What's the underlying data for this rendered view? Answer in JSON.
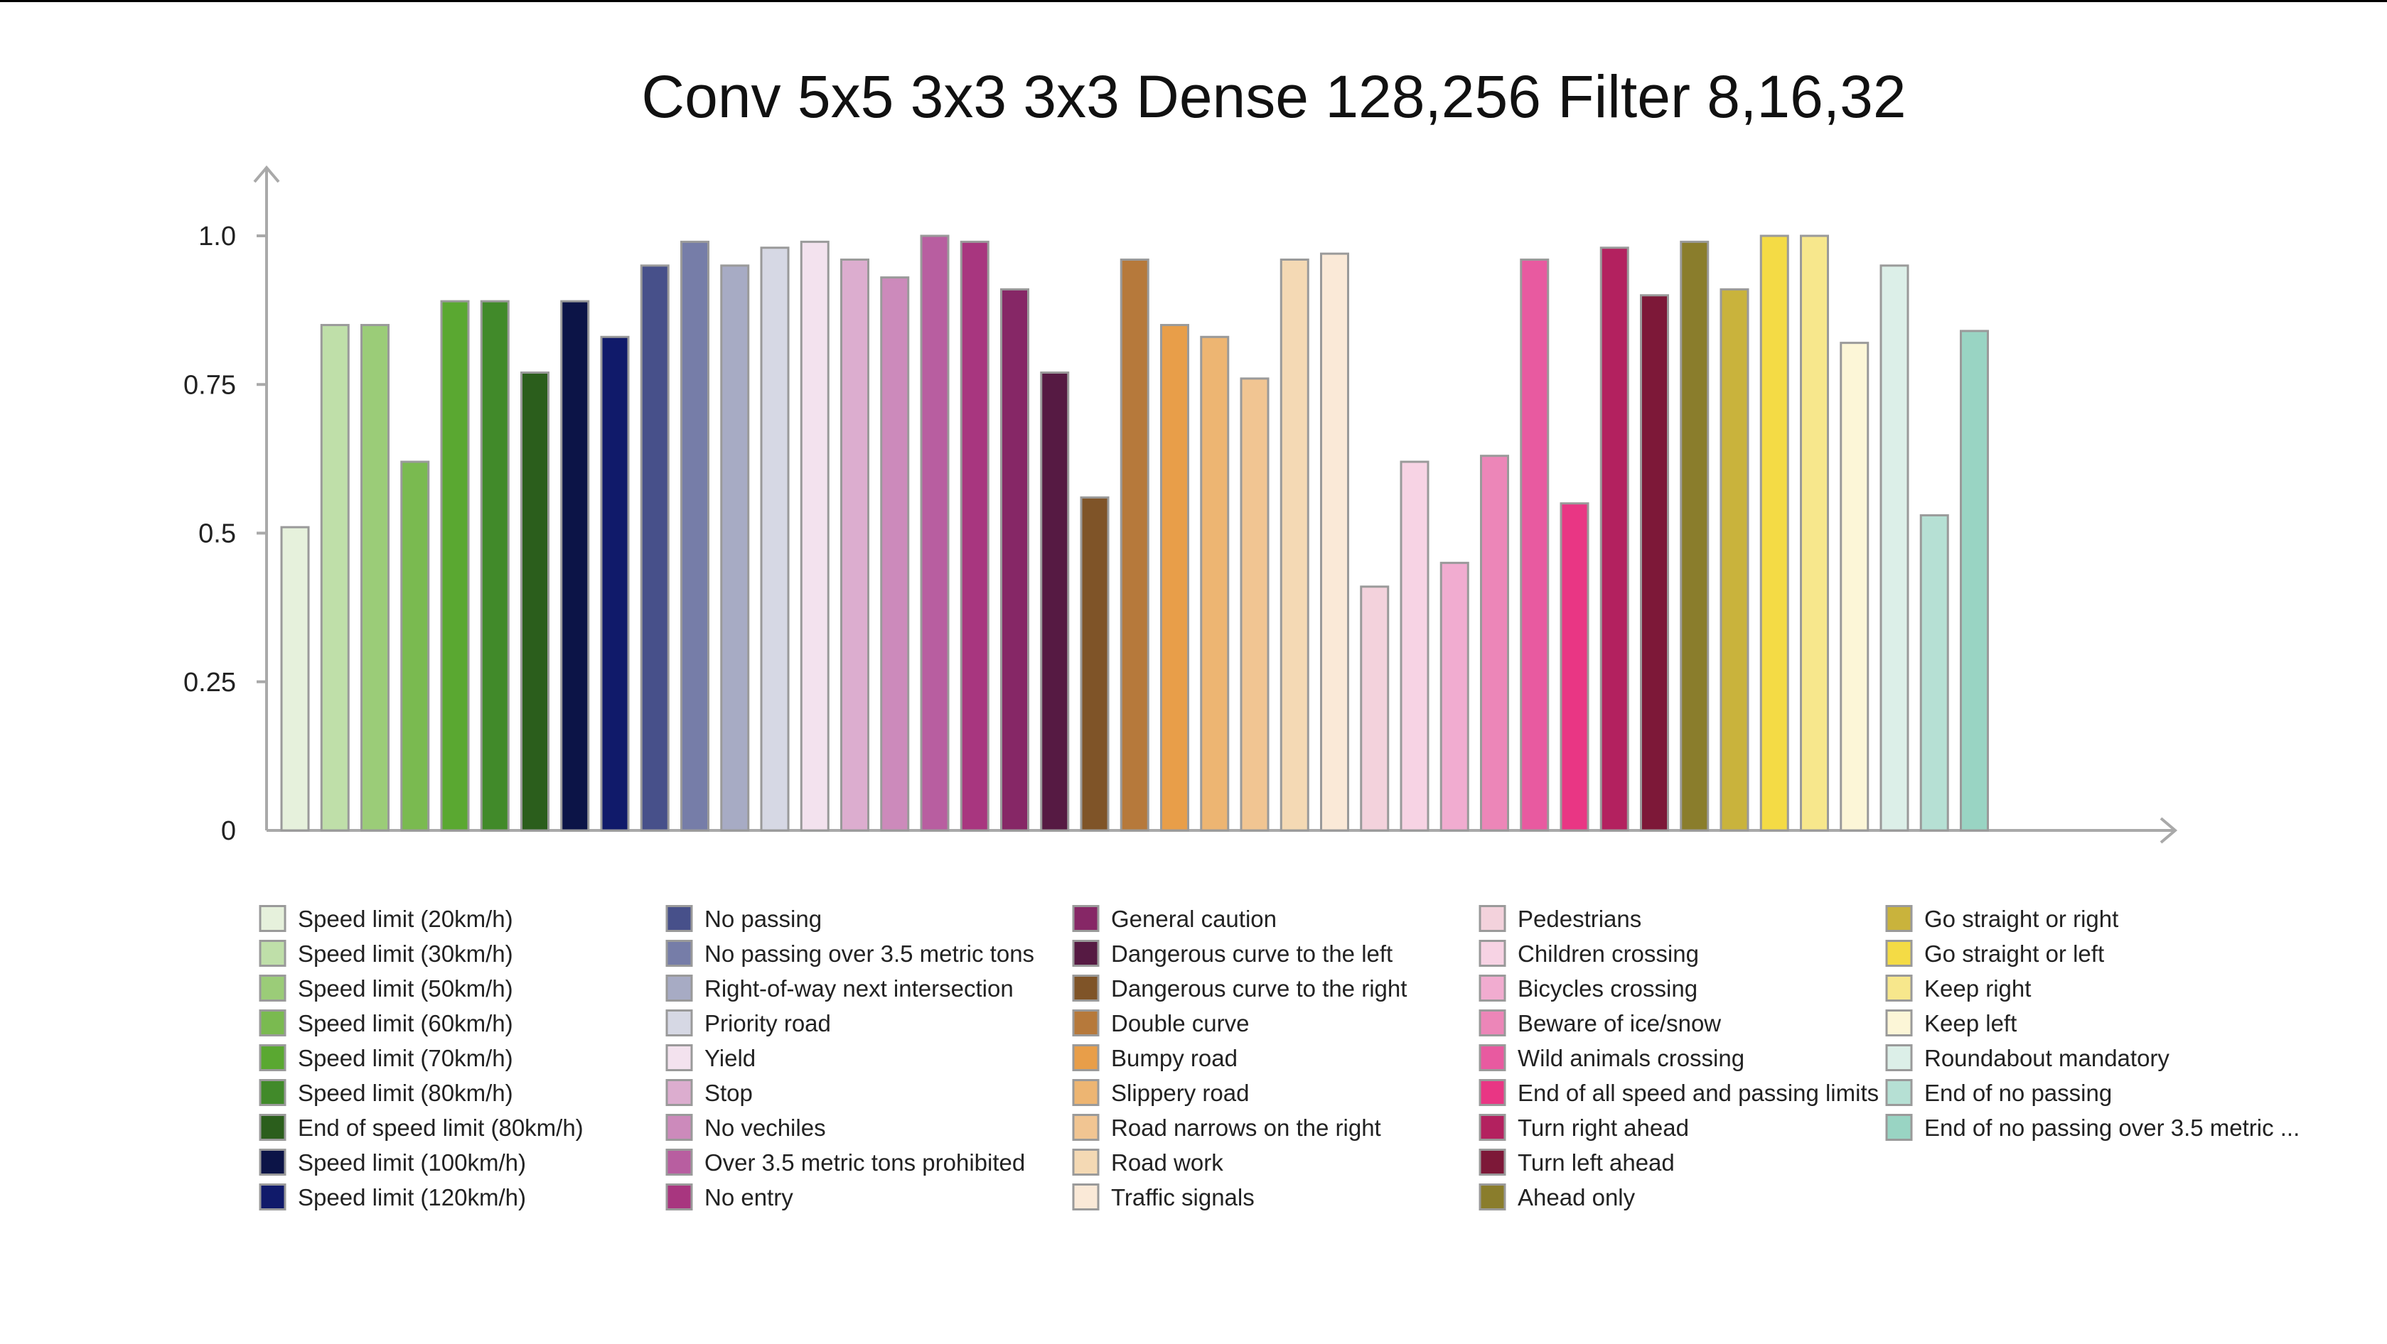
{
  "chart_data": {
    "type": "bar",
    "title": "Conv 5x5 3x3 3x3 Dense 128,256 Filter 8,16,32",
    "xlabel": "",
    "ylabel": "",
    "ylim": [
      0,
      1.1
    ],
    "yticks": [
      {
        "value": 0,
        "label": "0"
      },
      {
        "value": 0.25,
        "label": "0.25"
      },
      {
        "value": 0.5,
        "label": "0.5"
      },
      {
        "value": 0.75,
        "label": "0.75"
      },
      {
        "value": 1.0,
        "label": "1.0"
      }
    ],
    "grid": false,
    "legend_position": "bottom",
    "categories": [
      {
        "label": "Speed limit (20km/h)",
        "value": 0.51,
        "color": "#e6f1dc"
      },
      {
        "label": "Speed limit (30km/h)",
        "value": 0.85,
        "color": "#bfdfa9"
      },
      {
        "label": "Speed limit (50km/h)",
        "value": 0.85,
        "color": "#9bcc78"
      },
      {
        "label": "Speed limit (60km/h)",
        "value": 0.62,
        "color": "#7aba50"
      },
      {
        "label": "Speed limit (70km/h)",
        "value": 0.89,
        "color": "#5aa831"
      },
      {
        "label": "Speed limit (80km/h)",
        "value": 0.89,
        "color": "#418a2a"
      },
      {
        "label": "End of speed limit (80km/h)",
        "value": 0.77,
        "color": "#2b5e1c"
      },
      {
        "label": "Speed limit (100km/h)",
        "value": 0.89,
        "color": "#0c1447"
      },
      {
        "label": "Speed limit (120km/h)",
        "value": 0.83,
        "color": "#101a6a"
      },
      {
        "label": "No passing",
        "value": 0.95,
        "color": "#47508a"
      },
      {
        "label": "No passing over 3.5 metric tons",
        "value": 0.99,
        "color": "#767da8"
      },
      {
        "label": "Right-of-way next intersection",
        "value": 0.95,
        "color": "#a7abc4"
      },
      {
        "label": "Priority road",
        "value": 0.98,
        "color": "#d6d8e4"
      },
      {
        "label": "Yield",
        "value": 0.99,
        "color": "#f3e2ee"
      },
      {
        "label": "Stop",
        "value": 0.96,
        "color": "#dcadcf"
      },
      {
        "label": "No vechiles",
        "value": 0.93,
        "color": "#cc8abb"
      },
      {
        "label": "Over 3.5 metric tons prohibited",
        "value": 1.0,
        "color": "#b85ea0"
      },
      {
        "label": "No entry",
        "value": 0.99,
        "color": "#a8367f"
      },
      {
        "label": "General caution",
        "value": 0.91,
        "color": "#862766"
      },
      {
        "label": "Dangerous curve to the left",
        "value": 0.77,
        "color": "#561a43"
      },
      {
        "label": "Dangerous curve to the right",
        "value": 0.56,
        "color": "#7f5428"
      },
      {
        "label": "Double curve",
        "value": 0.96,
        "color": "#b6793b"
      },
      {
        "label": "Bumpy road",
        "value": 0.85,
        "color": "#e89e49"
      },
      {
        "label": "Slippery road",
        "value": 0.83,
        "color": "#edb572"
      },
      {
        "label": "Road narrows on the right",
        "value": 0.76,
        "color": "#f1c592"
      },
      {
        "label": "Road work",
        "value": 0.96,
        "color": "#f4d9b4"
      },
      {
        "label": "Traffic signals",
        "value": 0.97,
        "color": "#fae9d7"
      },
      {
        "label": "Pedestrians",
        "value": 0.41,
        "color": "#f3d2dc"
      },
      {
        "label": "Children crossing",
        "value": 0.62,
        "color": "#f7d3e4"
      },
      {
        "label": "Bicycles crossing",
        "value": 0.45,
        "color": "#f1acd0"
      },
      {
        "label": "Beware of ice/snow",
        "value": 0.63,
        "color": "#ec86b8"
      },
      {
        "label": "Wild animals crossing",
        "value": 0.96,
        "color": "#e85aa0"
      },
      {
        "label": "End of all speed and passing limits",
        "value": 0.55,
        "color": "#e93684"
      },
      {
        "label": "Turn right ahead",
        "value": 0.98,
        "color": "#b3215f"
      },
      {
        "label": "Turn left ahead",
        "value": 0.9,
        "color": "#7d1838"
      },
      {
        "label": "Ahead only",
        "value": 0.99,
        "color": "#8a7d2c"
      },
      {
        "label": "Go straight or right",
        "value": 0.91,
        "color": "#c9b33c"
      },
      {
        "label": "Go straight or left",
        "value": 1.0,
        "color": "#f4db45"
      },
      {
        "label": "Keep right",
        "value": 1.0,
        "color": "#f7e78c"
      },
      {
        "label": "Keep left",
        "value": 0.82,
        "color": "#fcf6d7"
      },
      {
        "label": "Roundabout mandatory",
        "value": 0.95,
        "color": "#dcefe8"
      },
      {
        "label": "End of no passing",
        "value": 0.53,
        "color": "#b6e0d4"
      },
      {
        "label": "End of no passing over 3.5 metric ...",
        "value": 0.84,
        "color": "#99d4c3"
      }
    ]
  }
}
